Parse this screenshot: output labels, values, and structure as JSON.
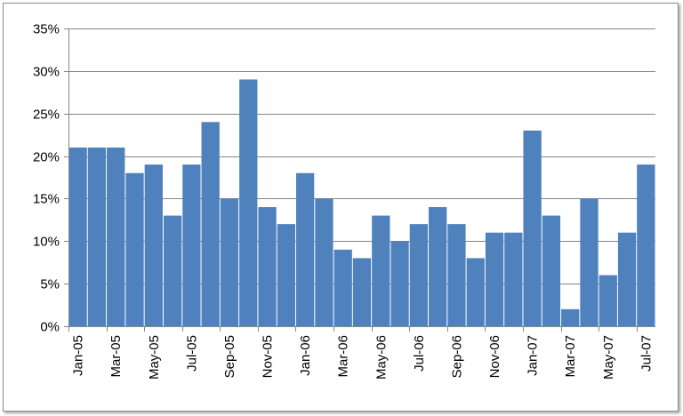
{
  "chart_data": {
    "type": "bar",
    "title": "",
    "xlabel": "",
    "ylabel": "",
    "ylim": [
      0,
      35
    ],
    "y_tick_values": [
      0,
      5,
      10,
      15,
      20,
      25,
      30,
      35
    ],
    "y_tick_labels": [
      "0%",
      "5%",
      "10%",
      "15%",
      "20%",
      "25%",
      "30%",
      "35%"
    ],
    "grid": true,
    "legend": "none",
    "bar_color": "#4f81bd",
    "categories": [
      "Jan-05",
      "Feb-05",
      "Mar-05",
      "Apr-05",
      "May-05",
      "Jun-05",
      "Jul-05",
      "Aug-05",
      "Sep-05",
      "Oct-05",
      "Nov-05",
      "Dec-05",
      "Jan-06",
      "Feb-06",
      "Mar-06",
      "Apr-06",
      "May-06",
      "Jun-06",
      "Jul-06",
      "Aug-06",
      "Sep-06",
      "Oct-06",
      "Nov-06",
      "Dec-06",
      "Jan-07",
      "Feb-07",
      "Mar-07",
      "Apr-07",
      "May-07",
      "Jun-07",
      "Jul-07"
    ],
    "x_tick_labels": [
      "Jan-05",
      "Mar-05",
      "May-05",
      "Jul-05",
      "Sep-05",
      "Nov-05",
      "Jan-06",
      "Mar-06",
      "May-06",
      "Jul-06",
      "Sep-06",
      "Nov-06",
      "Jan-07",
      "Mar-07",
      "May-07",
      "Jul-07"
    ],
    "values": [
      21,
      21,
      21,
      18,
      19,
      13,
      19,
      24,
      15,
      29,
      14,
      12,
      18,
      15,
      9,
      8,
      13,
      10,
      12,
      14,
      12,
      8,
      11,
      11,
      23,
      13,
      2,
      15,
      6,
      11,
      19
    ]
  }
}
